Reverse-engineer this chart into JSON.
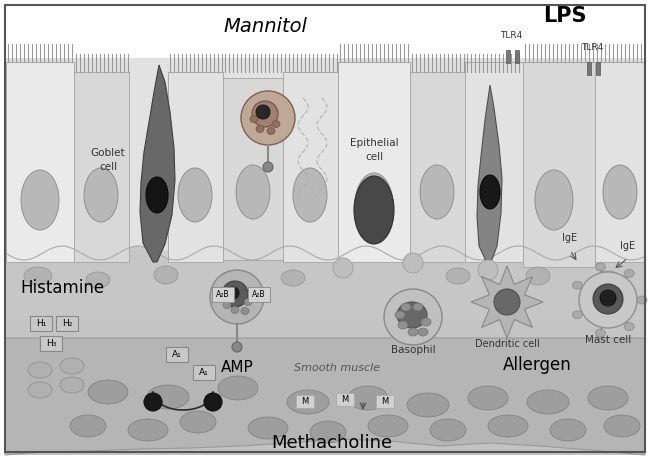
{
  "bg_color": "#f0f0f0",
  "border_color": "#555555",
  "cell_light": "#e8e8e8",
  "cell_mid": "#d8d8d8",
  "cell_dark": "#a0a0a0",
  "nucleus_gray": "#b0b0b0",
  "nucleus_dark": "#505050",
  "nucleus_black": "#1a1a1a",
  "goblet_color": "#707070",
  "sub_tissue": "#c8c8c8",
  "smooth_muscle": "#b8b8b8",
  "labels": {
    "mannitol": "Mannitol",
    "lps": "LPS",
    "tlr4": "TLR4",
    "goblet": "Goblet\ncell",
    "epithelial": "Epithelial\ncell",
    "histamine": "Histamine",
    "amp": "AMP",
    "basophil": "Basophil",
    "dendritic": "Dendritic cell",
    "allergen": "Allergen",
    "mast": "Mast cell",
    "ige": "IgE",
    "smooth": "Smooth muscle",
    "methacholine": "Methacholine"
  }
}
